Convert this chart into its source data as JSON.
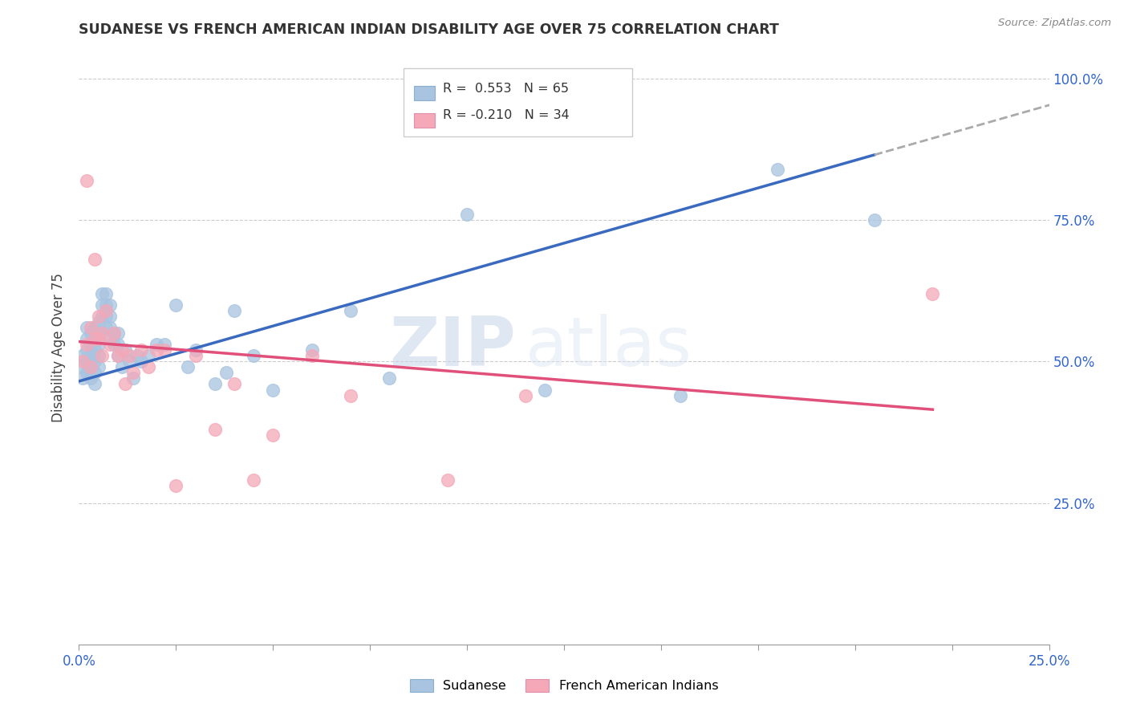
{
  "title": "SUDANESE VS FRENCH AMERICAN INDIAN DISABILITY AGE OVER 75 CORRELATION CHART",
  "source": "Source: ZipAtlas.com",
  "ylabel": "Disability Age Over 75",
  "xlim": [
    0.0,
    0.25
  ],
  "ylim": [
    0.0,
    1.05
  ],
  "xticks": [
    0.0,
    0.025,
    0.05,
    0.075,
    0.1,
    0.125,
    0.15,
    0.175,
    0.2,
    0.225,
    0.25
  ],
  "xticklabels": [
    "0.0%",
    "",
    "",
    "",
    "",
    "",
    "",
    "",
    "",
    "",
    "25.0%"
  ],
  "yticks_right": [
    0.25,
    0.5,
    0.75,
    1.0
  ],
  "ytick_right_labels": [
    "25.0%",
    "50.0%",
    "75.0%",
    "100.0%"
  ],
  "grid_color": "#cccccc",
  "background_color": "#ffffff",
  "sudanese_color": "#a8c4e0",
  "french_color": "#f4a8b8",
  "trendline_blue": "#3a6abf",
  "trendline_pink": "#e0507a",
  "trendline_dashed": "#aaaaaa",
  "legend_R1": "R =  0.553",
  "legend_N1": "N = 65",
  "legend_R2": "R = -0.210",
  "legend_N2": "N = 34",
  "legend_label1": "Sudanese",
  "legend_label2": "French American Indians",
  "watermark_zip": "ZIP",
  "watermark_atlas": "atlas",
  "sudanese_x": [
    0.001,
    0.001,
    0.001,
    0.002,
    0.002,
    0.002,
    0.002,
    0.002,
    0.003,
    0.003,
    0.003,
    0.003,
    0.003,
    0.004,
    0.004,
    0.004,
    0.004,
    0.004,
    0.004,
    0.005,
    0.005,
    0.005,
    0.005,
    0.005,
    0.006,
    0.006,
    0.006,
    0.007,
    0.007,
    0.007,
    0.007,
    0.008,
    0.008,
    0.008,
    0.008,
    0.009,
    0.009,
    0.01,
    0.01,
    0.01,
    0.011,
    0.012,
    0.013,
    0.014,
    0.015,
    0.016,
    0.018,
    0.02,
    0.022,
    0.025,
    0.028,
    0.03,
    0.035,
    0.038,
    0.04,
    0.045,
    0.05,
    0.06,
    0.07,
    0.08,
    0.1,
    0.12,
    0.155,
    0.18,
    0.205
  ],
  "sudanese_y": [
    0.47,
    0.49,
    0.51,
    0.48,
    0.5,
    0.52,
    0.54,
    0.56,
    0.47,
    0.49,
    0.51,
    0.53,
    0.55,
    0.46,
    0.48,
    0.5,
    0.52,
    0.54,
    0.56,
    0.49,
    0.51,
    0.53,
    0.55,
    0.57,
    0.58,
    0.6,
    0.62,
    0.56,
    0.58,
    0.6,
    0.62,
    0.54,
    0.56,
    0.58,
    0.6,
    0.53,
    0.55,
    0.51,
    0.53,
    0.55,
    0.49,
    0.52,
    0.5,
    0.47,
    0.51,
    0.5,
    0.51,
    0.53,
    0.53,
    0.6,
    0.49,
    0.52,
    0.46,
    0.48,
    0.59,
    0.51,
    0.45,
    0.52,
    0.59,
    0.47,
    0.76,
    0.45,
    0.44,
    0.84,
    0.75
  ],
  "french_x": [
    0.001,
    0.002,
    0.002,
    0.003,
    0.003,
    0.004,
    0.004,
    0.005,
    0.005,
    0.006,
    0.006,
    0.007,
    0.008,
    0.009,
    0.01,
    0.011,
    0.012,
    0.013,
    0.014,
    0.016,
    0.018,
    0.02,
    0.022,
    0.025,
    0.03,
    0.035,
    0.04,
    0.045,
    0.05,
    0.06,
    0.07,
    0.095,
    0.115,
    0.22
  ],
  "french_y": [
    0.5,
    0.53,
    0.82,
    0.49,
    0.56,
    0.54,
    0.68,
    0.54,
    0.58,
    0.55,
    0.51,
    0.59,
    0.53,
    0.55,
    0.51,
    0.52,
    0.46,
    0.51,
    0.48,
    0.52,
    0.49,
    0.52,
    0.52,
    0.28,
    0.51,
    0.38,
    0.46,
    0.29,
    0.37,
    0.51,
    0.44,
    0.29,
    0.44,
    0.62
  ],
  "blue_trend_x0": 0.0,
  "blue_trend_y0": 0.465,
  "blue_trend_x1": 0.205,
  "blue_trend_y1": 0.865,
  "pink_trend_x0": 0.0,
  "pink_trend_y0": 0.535,
  "pink_trend_x1": 0.22,
  "pink_trend_y1": 0.415
}
